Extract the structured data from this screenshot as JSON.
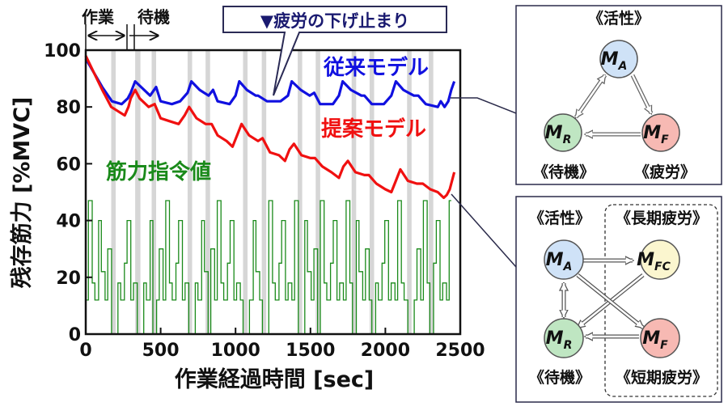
{
  "chart_data": {
    "type": "line",
    "xlabel": "作業経過時間 [sec]",
    "ylabel": "残存筋力 [%MVC]",
    "xlim": [
      0,
      2500
    ],
    "ylim": [
      0,
      100
    ],
    "x_ticks": [
      "0",
      "500",
      "1000",
      "1500",
      "2000",
      "2500"
    ],
    "y_ticks": [
      "0",
      "20",
      "40",
      "60",
      "80",
      "100"
    ],
    "phase_labels": {
      "work": "作業",
      "rest": "待機"
    },
    "rest_bands": [
      [
        170,
        200
      ],
      [
        330,
        365
      ],
      [
        440,
        470
      ],
      [
        680,
        710
      ],
      [
        800,
        830
      ],
      [
        1050,
        1080
      ],
      [
        1175,
        1205
      ],
      [
        1415,
        1445
      ],
      [
        1535,
        1565
      ],
      [
        1775,
        1805
      ],
      [
        1895,
        1925
      ],
      [
        2145,
        2175
      ],
      [
        2290,
        2320
      ]
    ],
    "series": [
      {
        "name": "従来モデル",
        "color": "#1010e0",
        "points": [
          [
            0,
            97
          ],
          [
            55,
            92
          ],
          [
            110,
            87
          ],
          [
            175,
            82
          ],
          [
            240,
            81
          ],
          [
            280,
            83
          ],
          [
            300,
            85
          ],
          [
            330,
            89
          ],
          [
            370,
            87
          ],
          [
            430,
            84
          ],
          [
            470,
            87
          ],
          [
            500,
            82
          ],
          [
            575,
            81
          ],
          [
            630,
            82
          ],
          [
            680,
            85
          ],
          [
            705,
            89
          ],
          [
            760,
            86
          ],
          [
            820,
            84
          ],
          [
            850,
            86
          ],
          [
            880,
            82
          ],
          [
            960,
            81
          ],
          [
            1000,
            84
          ],
          [
            1025,
            89
          ],
          [
            1075,
            86
          ],
          [
            1135,
            84
          ],
          [
            1150,
            84
          ],
          [
            1210,
            82
          ],
          [
            1300,
            82
          ],
          [
            1350,
            84
          ],
          [
            1375,
            89
          ],
          [
            1435,
            86
          ],
          [
            1495,
            84
          ],
          [
            1525,
            85
          ],
          [
            1565,
            81
          ],
          [
            1650,
            81
          ],
          [
            1690,
            84
          ],
          [
            1715,
            89
          ],
          [
            1770,
            86
          ],
          [
            1840,
            84
          ],
          [
            1860,
            84
          ],
          [
            1910,
            81
          ],
          [
            1990,
            81
          ],
          [
            2040,
            84
          ],
          [
            2070,
            89
          ],
          [
            2120,
            86
          ],
          [
            2190,
            84
          ],
          [
            2220,
            84
          ],
          [
            2270,
            81
          ],
          [
            2350,
            80
          ],
          [
            2370,
            82
          ],
          [
            2395,
            80
          ],
          [
            2420,
            82
          ],
          [
            2440,
            86
          ],
          [
            2460,
            89
          ]
        ]
      },
      {
        "name": "提案モデル",
        "color": "#f01010",
        "points": [
          [
            0,
            98
          ],
          [
            55,
            92
          ],
          [
            110,
            86
          ],
          [
            170,
            80
          ],
          [
            230,
            78
          ],
          [
            260,
            77
          ],
          [
            285,
            80
          ],
          [
            300,
            83
          ],
          [
            330,
            86
          ],
          [
            360,
            83
          ],
          [
            420,
            80
          ],
          [
            460,
            81
          ],
          [
            500,
            76
          ],
          [
            560,
            75
          ],
          [
            620,
            74
          ],
          [
            660,
            77
          ],
          [
            690,
            80
          ],
          [
            740,
            76
          ],
          [
            800,
            74
          ],
          [
            840,
            74
          ],
          [
            880,
            70
          ],
          [
            940,
            68
          ],
          [
            980,
            66
          ],
          [
            1010,
            70
          ],
          [
            1040,
            74
          ],
          [
            1090,
            70
          ],
          [
            1150,
            68
          ],
          [
            1180,
            69
          ],
          [
            1230,
            64
          ],
          [
            1290,
            63
          ],
          [
            1330,
            61
          ],
          [
            1360,
            65
          ],
          [
            1390,
            67
          ],
          [
            1440,
            63
          ],
          [
            1500,
            62
          ],
          [
            1530,
            62
          ],
          [
            1580,
            59
          ],
          [
            1640,
            57
          ],
          [
            1690,
            55
          ],
          [
            1720,
            59
          ],
          [
            1750,
            61
          ],
          [
            1800,
            57
          ],
          [
            1860,
            56
          ],
          [
            1890,
            56
          ],
          [
            1940,
            53
          ],
          [
            2000,
            51
          ],
          [
            2040,
            50
          ],
          [
            2070,
            54
          ],
          [
            2100,
            58
          ],
          [
            2150,
            54
          ],
          [
            2210,
            53
          ],
          [
            2250,
            53
          ],
          [
            2300,
            51
          ],
          [
            2350,
            50
          ],
          [
            2390,
            48
          ],
          [
            2410,
            49
          ],
          [
            2430,
            51
          ],
          [
            2445,
            54
          ],
          [
            2460,
            57
          ]
        ]
      },
      {
        "name": "筋力指令値",
        "color": "#1a8a1a",
        "mode": "step"
      }
    ],
    "annotations": {
      "arrow_label": "▼疲労の下げ止まり"
    }
  },
  "diagrams": {
    "three_state": {
      "nodes": [
        {
          "symbol": "M",
          "sub": "A",
          "label": "《活性》"
        },
        {
          "symbol": "M",
          "sub": "R",
          "label": "《待機》"
        },
        {
          "symbol": "M",
          "sub": "F",
          "label": "《疲労》"
        }
      ]
    },
    "four_state": {
      "nodes": [
        {
          "symbol": "M",
          "sub": "A",
          "label": "《活性》"
        },
        {
          "symbol": "M",
          "sub": "FC",
          "label": "《長期疲労》"
        },
        {
          "symbol": "M",
          "sub": "R",
          "label": "《待機》"
        },
        {
          "symbol": "M",
          "sub": "F",
          "label": "《短期疲労》"
        }
      ]
    }
  },
  "colors": {
    "active_fill": "#cfe2f7",
    "rest_fill": "#bfe6c2",
    "fatigue_fill": "#f7b9b3",
    "long_fatigue_fill": "#fbf6cf",
    "rest_band": "#d6d6d6",
    "frame": "#2a2a4a"
  }
}
